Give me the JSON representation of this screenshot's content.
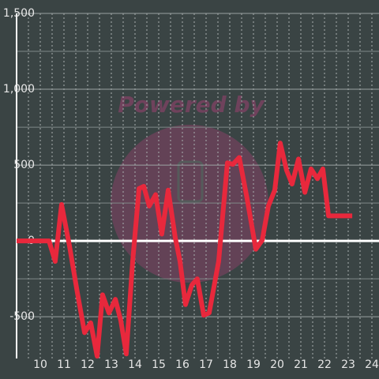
{
  "chart_data": {
    "type": "line",
    "watermark": "Powered by",
    "x": [
      9.0,
      10.37,
      10.63,
      10.9,
      11.23,
      11.57,
      11.87,
      12.13,
      12.4,
      12.63,
      12.9,
      13.17,
      13.4,
      13.63,
      13.9,
      14.17,
      14.37,
      14.6,
      14.87,
      15.13,
      15.4,
      15.7,
      15.9,
      16.13,
      16.4,
      16.63,
      16.9,
      17.13,
      17.53,
      17.9,
      18.13,
      18.4,
      18.73,
      19.1,
      19.37,
      19.63,
      19.9,
      20.13,
      20.4,
      20.63,
      20.9,
      21.17,
      21.43,
      21.7,
      21.93,
      22.17,
      23.17
    ],
    "series": [
      {
        "color": "#e8283c",
        "values": [
          0,
          0,
          -135,
          240,
          -30,
          -345,
          -605,
          -540,
          -760,
          -355,
          -475,
          -385,
          -525,
          -745,
          -135,
          345,
          360,
          230,
          305,
          45,
          335,
          20,
          -135,
          -420,
          -290,
          -250,
          -490,
          -475,
          -135,
          515,
          505,
          550,
          280,
          -55,
          5,
          230,
          335,
          645,
          465,
          375,
          540,
          320,
          475,
          410,
          475,
          165,
          165
        ]
      }
    ],
    "xlim": [
      9,
      24.3
    ],
    "xticks": [
      10,
      11,
      12,
      13,
      14,
      15,
      16,
      17,
      18,
      19,
      20,
      21,
      22,
      23,
      24
    ],
    "ylim": [
      -775,
      1500
    ],
    "yticks": [
      {
        "value": 1500,
        "label": "1,500"
      },
      {
        "value": 1000,
        "label": "1,000"
      },
      500,
      0,
      -500
    ],
    "grid": true
  }
}
